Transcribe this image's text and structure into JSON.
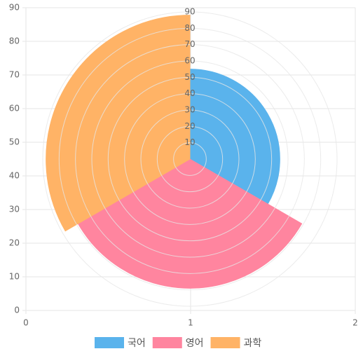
{
  "chart_data": {
    "type": "polarArea",
    "categories": [
      "국어",
      "영어",
      "과학"
    ],
    "values": [
      55,
      79,
      88
    ],
    "colors": [
      "#5ab3ec",
      "#ff859f",
      "#ffb366"
    ],
    "rlim": [
      0,
      90
    ],
    "rticks": [
      10,
      20,
      30,
      40,
      50,
      60,
      70,
      80,
      90
    ],
    "xlim": [
      0,
      2
    ],
    "xticks": [
      0,
      1,
      2
    ],
    "ylim": [
      0,
      90
    ],
    "yticks": [
      0,
      10,
      20,
      30,
      40,
      50,
      60,
      70,
      80,
      90
    ],
    "grid": true,
    "legend": "bottom"
  }
}
